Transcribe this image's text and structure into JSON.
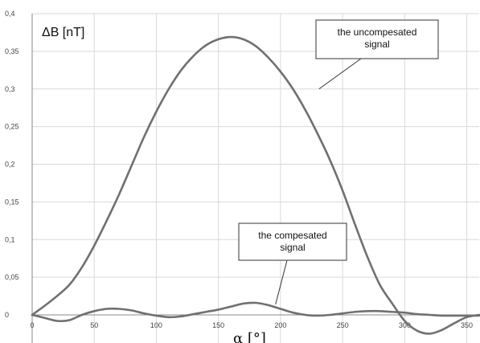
{
  "chart_data": {
    "type": "line",
    "title": "",
    "ylabel": "ΔB [nT]",
    "xlabel": "α [°]",
    "xlim": [
      0,
      360
    ],
    "ylim": [
      -0.02,
      0.4
    ],
    "x_ticks": [
      0,
      50,
      100,
      150,
      200,
      250,
      300,
      350
    ],
    "y_ticks": [
      0,
      0.05,
      0.1,
      0.15,
      0.2,
      0.25,
      0.3,
      0.35,
      0.4
    ],
    "x_tick_labels": [
      "0",
      "50",
      "100",
      "150",
      "200",
      "250",
      "300",
      "350"
    ],
    "y_tick_labels": [
      "0",
      "0,05",
      "0,1",
      "0,15",
      "0,2",
      "0,25",
      "0,3",
      "0,35",
      "0,4"
    ],
    "grid": true,
    "series": [
      {
        "name": "the uncompesated signal",
        "color": "#707070",
        "x": [
          0,
          10,
          20,
          30,
          40,
          50,
          60,
          70,
          80,
          90,
          100,
          110,
          120,
          130,
          140,
          150,
          160,
          170,
          180,
          190,
          200,
          210,
          220,
          230,
          240,
          250,
          260,
          270,
          280,
          290,
          300,
          310,
          320,
          330,
          340,
          350,
          360
        ],
        "values": [
          0,
          0.012,
          0.025,
          0.04,
          0.063,
          0.092,
          0.125,
          0.16,
          0.198,
          0.236,
          0.27,
          0.3,
          0.325,
          0.344,
          0.358,
          0.366,
          0.369,
          0.366,
          0.357,
          0.342,
          0.323,
          0.3,
          0.272,
          0.24,
          0.205,
          0.165,
          0.12,
          0.077,
          0.04,
          0.015,
          -0.008,
          -0.021,
          -0.025,
          -0.02,
          -0.011,
          -0.003,
          0
        ]
      },
      {
        "name": "the compesated signal",
        "color": "#707070",
        "x": [
          0,
          10,
          20,
          30,
          40,
          50,
          60,
          70,
          80,
          90,
          100,
          110,
          120,
          130,
          140,
          150,
          160,
          170,
          180,
          190,
          200,
          210,
          220,
          230,
          240,
          250,
          260,
          270,
          280,
          290,
          300,
          310,
          320,
          330,
          340,
          350,
          360
        ],
        "values": [
          0,
          -0.004,
          -0.008,
          -0.007,
          0,
          0.005,
          0.008,
          0.008,
          0.006,
          0.002,
          -0.001,
          -0.003,
          -0.002,
          0.001,
          0.004,
          0.007,
          0.011,
          0.015,
          0.016,
          0.013,
          0.008,
          0.003,
          0,
          -0.001,
          0,
          0.002,
          0.004,
          0.005,
          0.005,
          0.004,
          0.003,
          0.001,
          0,
          -0.001,
          -0.001,
          -0.001,
          -0.001
        ]
      }
    ],
    "annotations": [
      {
        "text_lines": [
          "the uncompesated",
          "signal"
        ],
        "series": 0
      },
      {
        "text_lines": [
          "the compesated",
          "signal"
        ],
        "series": 1
      }
    ]
  }
}
